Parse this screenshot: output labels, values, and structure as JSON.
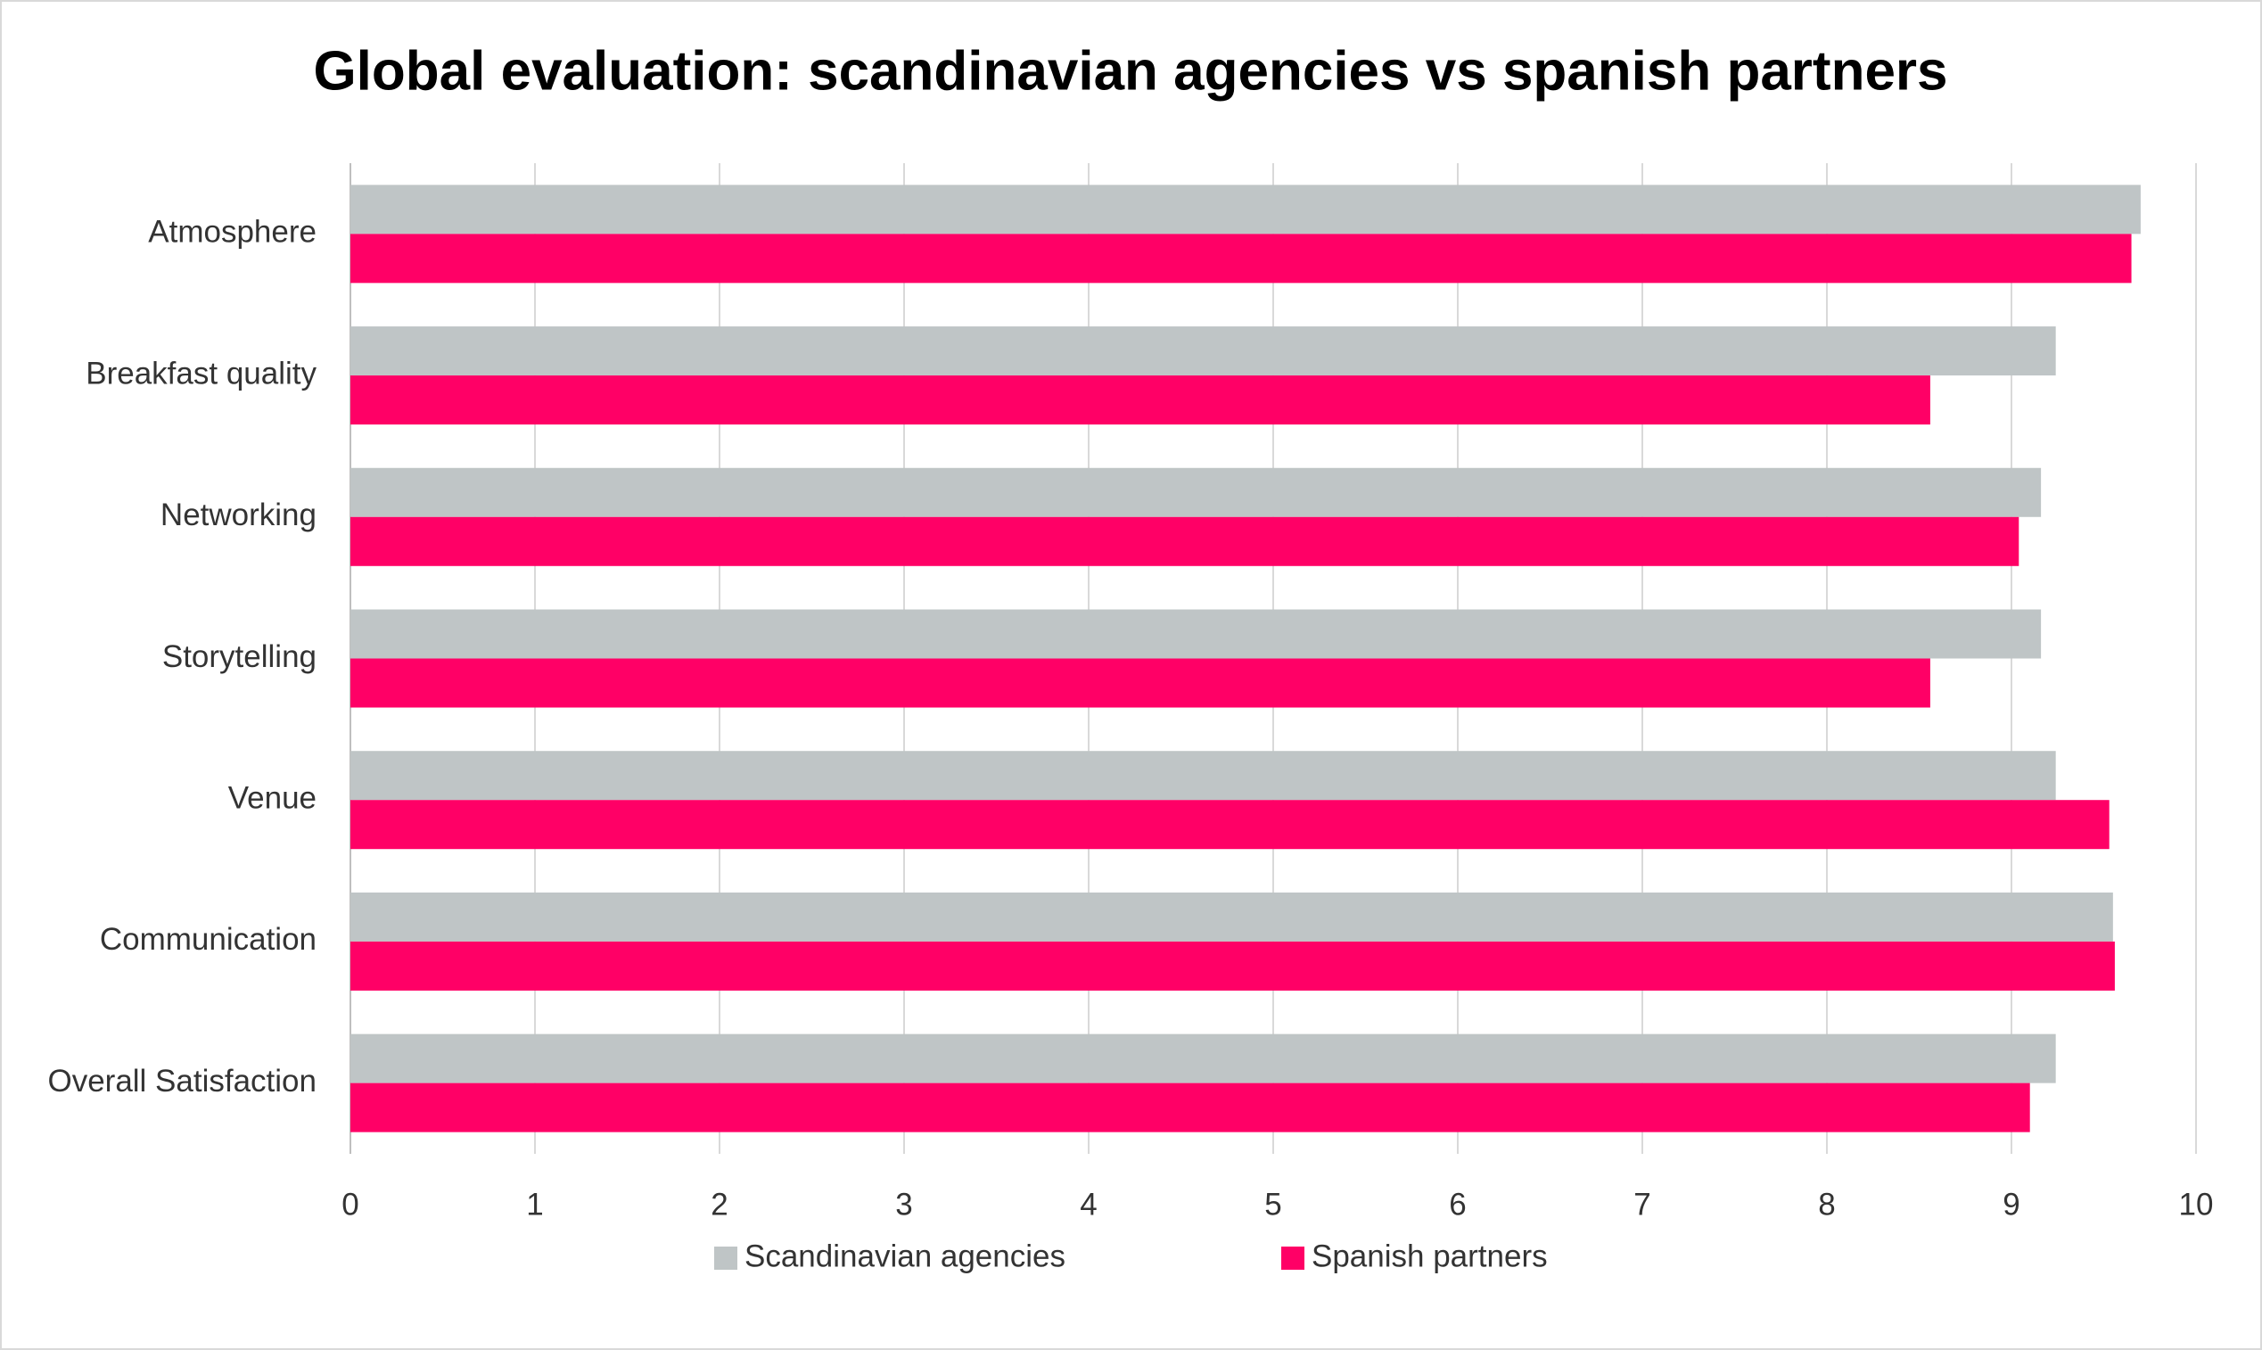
{
  "chart_data": {
    "type": "hbar",
    "title": "Global evaluation: scandinavian agencies vs spanish partners",
    "categories": [
      "Atmosphere",
      "Breakfast quality",
      "Networking",
      "Storytelling",
      "Venue",
      "Communication",
      "Overall Satisfaction"
    ],
    "series": [
      {
        "name": "Scandinavian agencies",
        "color": "#bfc5c6",
        "values": [
          9.7,
          9.24,
          9.16,
          9.16,
          9.24,
          9.55,
          9.24
        ]
      },
      {
        "name": "Spanish partners",
        "color": "#ff0066",
        "values": [
          9.65,
          8.56,
          9.04,
          8.56,
          9.53,
          9.56,
          9.1
        ]
      }
    ],
    "xlim": [
      0,
      10
    ],
    "xticks": [
      0,
      1,
      2,
      3,
      4,
      5,
      6,
      7,
      8,
      9,
      10
    ],
    "grid": true,
    "legend": "bottom"
  }
}
